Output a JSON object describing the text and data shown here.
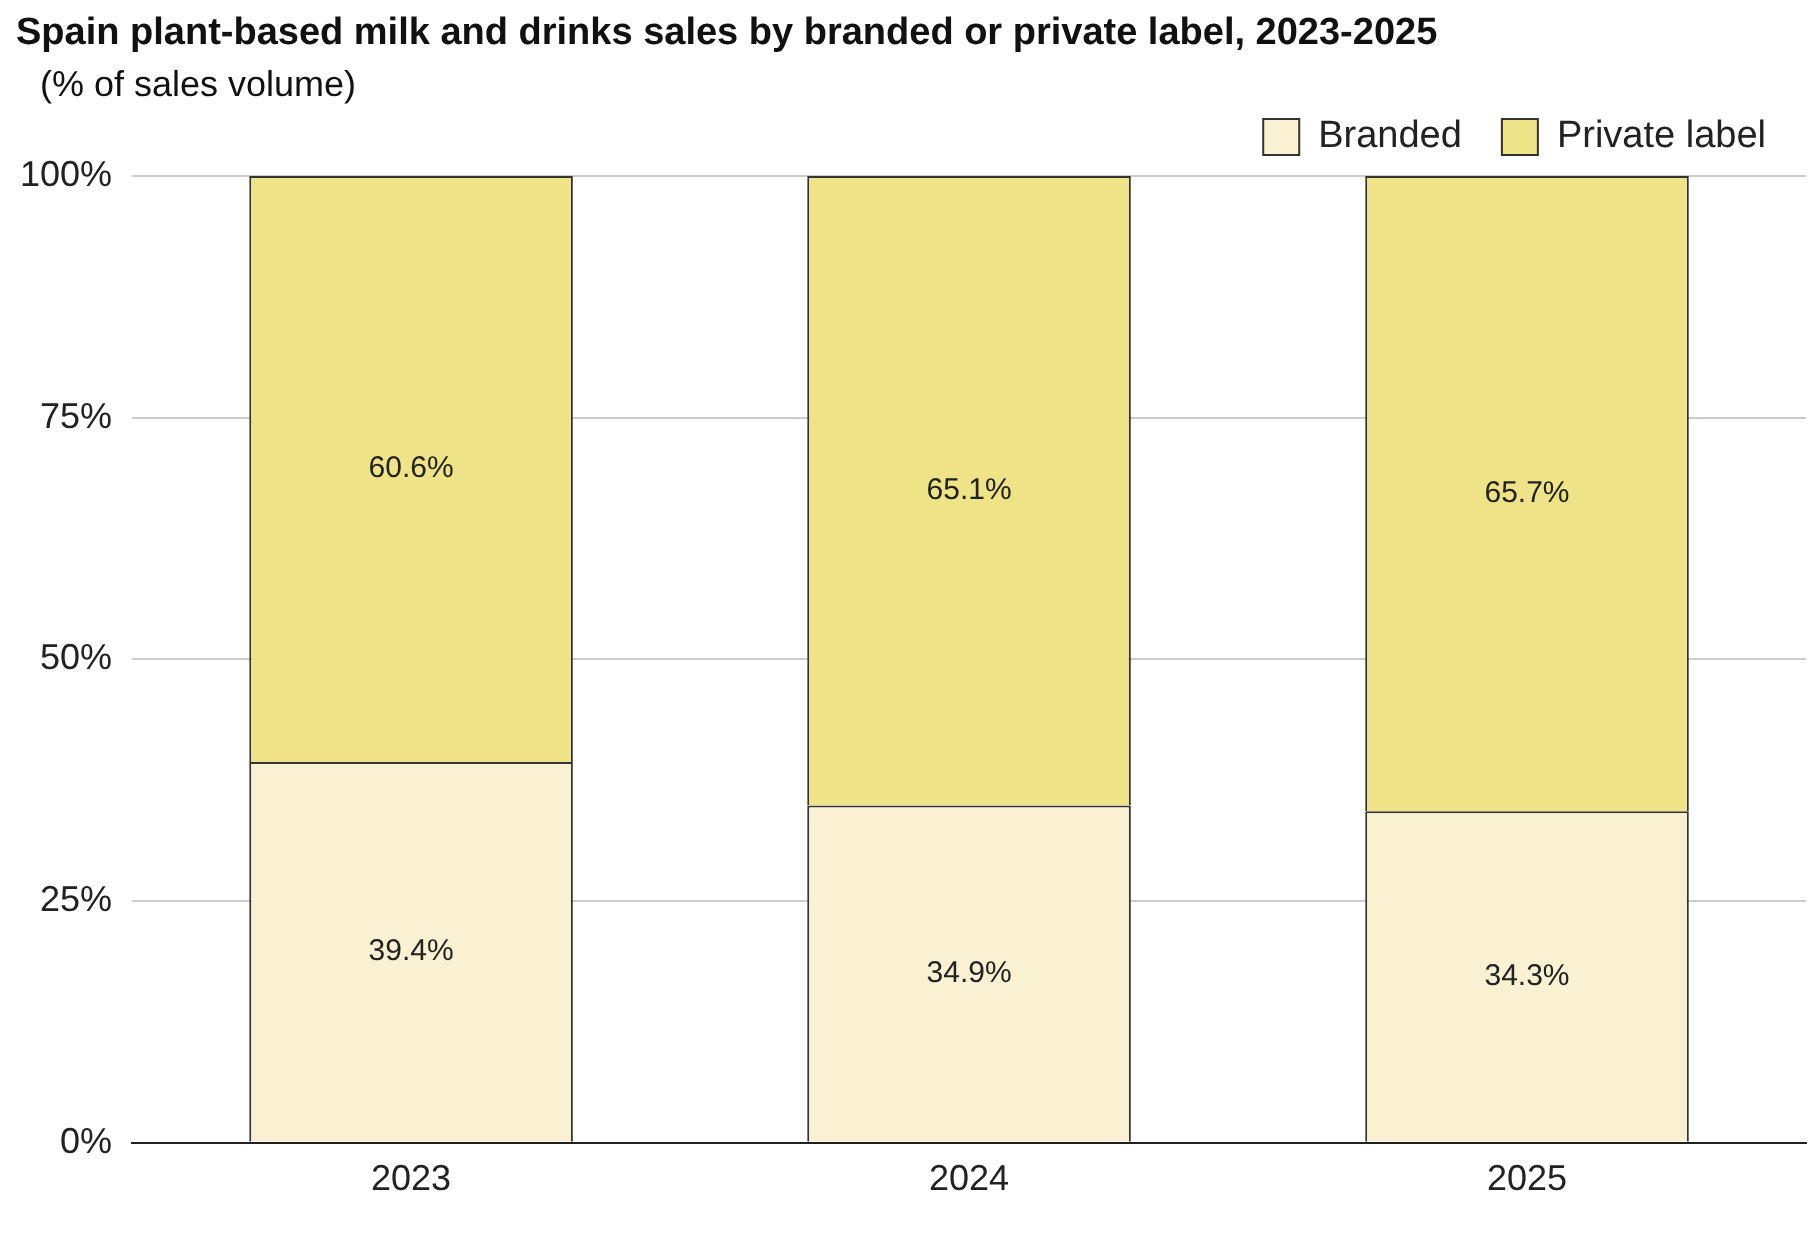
{
  "chart_data": {
    "type": "bar",
    "title": "Spain plant-based milk and drinks sales by branded or private label, 2023-2025",
    "subtitle": "(% of sales volume)",
    "categories": [
      "2023",
      "2024",
      "2025"
    ],
    "stacked": true,
    "series": [
      {
        "name": "Branded",
        "color": "#faf0d2",
        "values": [
          39.4,
          34.9,
          34.3
        ],
        "value_labels": [
          "39.4%",
          "34.9%",
          "34.3%"
        ]
      },
      {
        "name": "Private label",
        "color": "#efe388",
        "values": [
          60.6,
          65.1,
          65.7
        ],
        "value_labels": [
          "60.6%",
          "65.1%",
          "65.7%"
        ]
      }
    ],
    "ylim": [
      0,
      100
    ],
    "yticks": [
      {
        "value": 0,
        "label": "0%"
      },
      {
        "value": 25,
        "label": "25%"
      },
      {
        "value": 50,
        "label": "50%"
      },
      {
        "value": 75,
        "label": "75%"
      },
      {
        "value": 100,
        "label": "100%"
      }
    ],
    "grid": "y",
    "legend": "top right"
  }
}
